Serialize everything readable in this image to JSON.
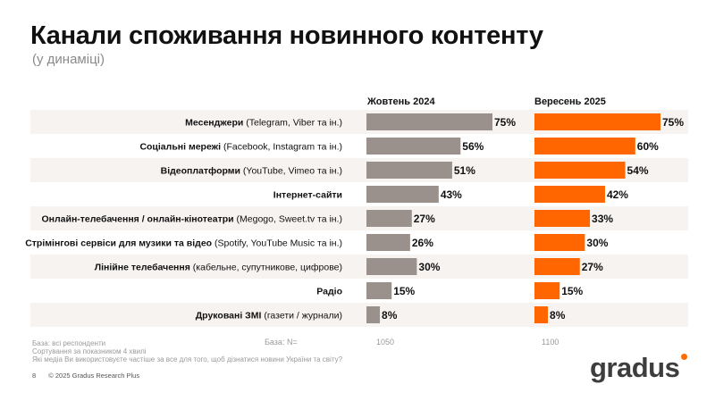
{
  "title": "Канали споживання новинного контенту",
  "subtitle": "(у динаміці)",
  "colors": {
    "series1": "#9a918c",
    "series2": "#ff6600",
    "stripe": "#f7f3f1",
    "logo_dot": "#ff6b00"
  },
  "chart_data": {
    "type": "bar",
    "orientation": "horizontal",
    "categories": [
      {
        "bold": "Месенджери",
        "rest": " (Telegram, Viber та ін.)"
      },
      {
        "bold": "Соціальні мережі",
        "rest": " (Facebook, Instagram та ін.)"
      },
      {
        "bold": "Відеоплатформи",
        "rest": " (YouTube, Vimeo та ін.)"
      },
      {
        "bold": "Інтернет-сайти",
        "rest": ""
      },
      {
        "bold": "Онлайн-телебачення / онлайн-кінотеатри",
        "rest": " (Megogo, Sweet.tv та ін.)"
      },
      {
        "bold": "Стрімінгові сервіси для музики та відео",
        "rest": " (Spotify, YouTube Music та ін.)"
      },
      {
        "bold": "Лінійне телебачення",
        "rest": " (кабельне, супутникове, цифрове)"
      },
      {
        "bold": "Радіо",
        "rest": ""
      },
      {
        "bold": "Друковані ЗМІ",
        "rest": " (газети / журнали)"
      }
    ],
    "series": [
      {
        "name": "Жовтень 2024",
        "values": [
          75,
          56,
          51,
          43,
          27,
          26,
          30,
          15,
          8
        ],
        "labels": [
          "75%",
          "56%",
          "51%",
          "43%",
          "27%",
          "26%",
          "30%",
          "15%",
          "8%"
        ],
        "base": "1050"
      },
      {
        "name": "Вересень 2025",
        "values": [
          75,
          60,
          54,
          42,
          33,
          30,
          27,
          15,
          8
        ],
        "labels": [
          "75%",
          "60%",
          "54%",
          "42%",
          "33%",
          "30%",
          "27%",
          "15%",
          "8%"
        ],
        "base": "1100"
      }
    ],
    "xlim": [
      0,
      100
    ]
  },
  "base_label": "База: N=",
  "notes": [
    "База: всі респонденти",
    "Сортування за показником 4 хвилі",
    "Які медіа Ви використовуєте частіше за все для того, щоб дізнатися новини України та світу?"
  ],
  "footer": {
    "page": "8",
    "copyright": "© 2025 Gradus Research Plus"
  },
  "logo": "gradus"
}
